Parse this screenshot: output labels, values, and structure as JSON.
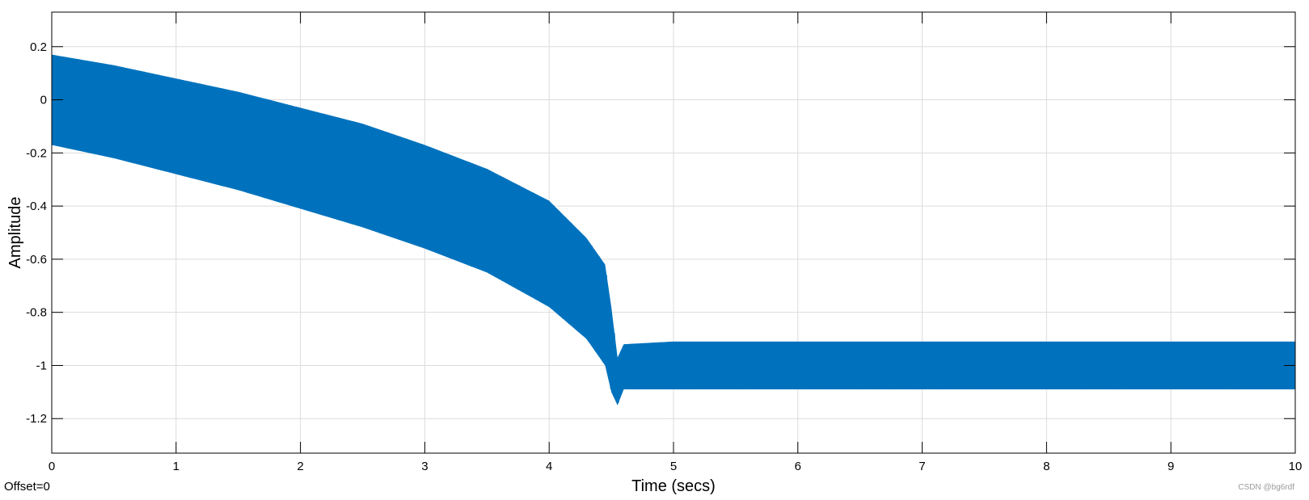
{
  "chart_data": {
    "type": "line",
    "title": "",
    "xlabel": "Time (secs)",
    "ylabel": "Amplitude",
    "xlim": [
      0,
      10
    ],
    "ylim": [
      -1.33,
      0.33
    ],
    "xticks": [
      0,
      1,
      2,
      3,
      4,
      5,
      6,
      7,
      8,
      9,
      10
    ],
    "xtick_labels": [
      "0",
      "1",
      "2",
      "3",
      "4",
      "5",
      "6",
      "7",
      "8",
      "9",
      "10"
    ],
    "yticks": [
      0.2,
      0,
      -0.2,
      -0.4,
      -0.6,
      -0.8,
      -1,
      -1.2
    ],
    "ytick_labels": [
      "0.2",
      "0",
      "-0.2",
      "-0.4",
      "-0.6",
      "-0.8",
      "-1",
      "-1.2"
    ],
    "grid": true,
    "legend": "none",
    "line_color": "#0072BD",
    "series": [
      {
        "envelope": {
          "time": [
            0,
            0.5,
            1,
            1.5,
            2,
            2.5,
            3,
            3.5,
            4,
            4.3,
            4.45,
            4.5,
            4.55,
            4.6,
            5,
            6,
            7,
            8,
            9,
            10
          ],
          "upper": [
            0.17,
            0.13,
            0.08,
            0.03,
            -0.03,
            -0.09,
            -0.17,
            -0.26,
            -0.38,
            -0.52,
            -0.62,
            -0.78,
            -0.97,
            -0.92,
            -0.91,
            -0.91,
            -0.91,
            -0.91,
            -0.91,
            -0.91
          ],
          "lower": [
            -0.17,
            -0.22,
            -0.28,
            -0.34,
            -0.41,
            -0.48,
            -0.56,
            -0.65,
            -0.78,
            -0.9,
            -1.0,
            -1.1,
            -1.15,
            -1.09,
            -1.09,
            -1.09,
            -1.09,
            -1.09,
            -1.09,
            -1.09
          ]
        }
      }
    ]
  },
  "footer": {
    "offset_text": "Offset=0",
    "watermark": "CSDN @bg6rdf"
  }
}
